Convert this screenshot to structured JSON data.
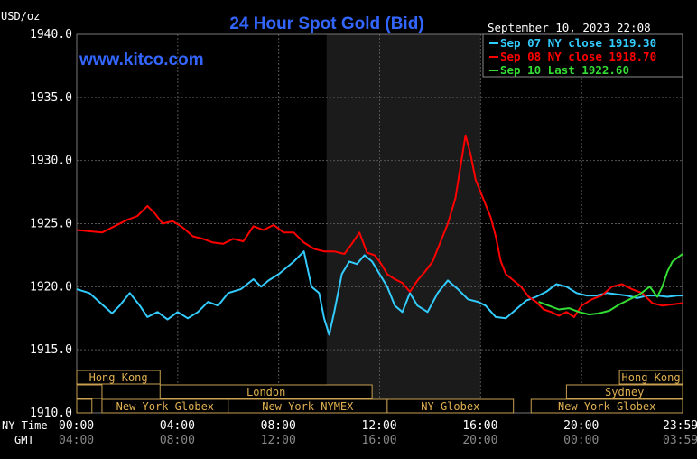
{
  "chart_data": {
    "type": "line",
    "title": "24 Hour Spot Gold (Bid)",
    "watermark": "www.kitco.com",
    "timestamp": "September 10, 2023 22:08",
    "ylabel": "USD/oz",
    "ylim": [
      1910,
      1940
    ],
    "yticks": [
      "1940.0",
      "1935.0",
      "1930.0",
      "1925.0",
      "1920.0",
      "1915.0",
      "1910.0"
    ],
    "yvalues": [
      1940,
      1935,
      1930,
      1925,
      1920,
      1915,
      1910
    ],
    "xlim": [
      0,
      24
    ],
    "x_axis_ny_label": "NY Time",
    "x_axis_gmt_label": "GMT",
    "xticks_ny": [
      "00:00",
      "04:00",
      "08:00",
      "12:00",
      "16:00",
      "20:00",
      "23:59"
    ],
    "xticks_gmt": [
      "04:00",
      "08:00",
      "12:00",
      "16:00",
      "20:00",
      "00:00",
      "03:59"
    ],
    "xtick_hours": [
      0,
      4,
      8,
      12,
      16,
      20,
      24
    ],
    "shaded_region": [
      9.9,
      16.0
    ],
    "grid": true,
    "legend_position": "top-right",
    "series": [
      {
        "name": "Sep 07 NY close 1919.30",
        "color": "#33ccff",
        "points": [
          [
            0,
            1919.8
          ],
          [
            0.5,
            1919.5
          ],
          [
            1,
            1918.6
          ],
          [
            1.4,
            1917.9
          ],
          [
            1.7,
            1918.5
          ],
          [
            2.1,
            1919.5
          ],
          [
            2.5,
            1918.5
          ],
          [
            2.8,
            1917.6
          ],
          [
            3.2,
            1918.0
          ],
          [
            3.6,
            1917.4
          ],
          [
            4.0,
            1918.0
          ],
          [
            4.4,
            1917.5
          ],
          [
            4.8,
            1918.0
          ],
          [
            5.2,
            1918.8
          ],
          [
            5.6,
            1918.5
          ],
          [
            6.0,
            1919.5
          ],
          [
            6.5,
            1919.8
          ],
          [
            7.0,
            1920.6
          ],
          [
            7.3,
            1920.0
          ],
          [
            7.6,
            1920.5
          ],
          [
            8.0,
            1921.0
          ],
          [
            8.3,
            1921.5
          ],
          [
            8.6,
            1922.0
          ],
          [
            9.0,
            1922.8
          ],
          [
            9.3,
            1920.0
          ],
          [
            9.6,
            1919.5
          ],
          [
            9.8,
            1917.5
          ],
          [
            10.0,
            1916.2
          ],
          [
            10.2,
            1918.0
          ],
          [
            10.5,
            1921.0
          ],
          [
            10.8,
            1922.0
          ],
          [
            11.1,
            1921.8
          ],
          [
            11.4,
            1922.5
          ],
          [
            11.7,
            1922.0
          ],
          [
            12.0,
            1921.0
          ],
          [
            12.3,
            1920.0
          ],
          [
            12.6,
            1918.5
          ],
          [
            12.9,
            1918.0
          ],
          [
            13.2,
            1919.5
          ],
          [
            13.5,
            1918.5
          ],
          [
            13.9,
            1918.0
          ],
          [
            14.3,
            1919.5
          ],
          [
            14.7,
            1920.5
          ],
          [
            15.1,
            1919.8
          ],
          [
            15.5,
            1919.0
          ],
          [
            15.9,
            1918.8
          ],
          [
            16.2,
            1918.5
          ],
          [
            16.6,
            1917.6
          ],
          [
            17.0,
            1917.5
          ],
          [
            17.4,
            1918.2
          ],
          [
            17.8,
            1918.9
          ],
          [
            18.2,
            1919.2
          ],
          [
            18.6,
            1919.6
          ],
          [
            19.0,
            1920.2
          ],
          [
            19.4,
            1920.0
          ],
          [
            19.8,
            1919.5
          ],
          [
            20.2,
            1919.3
          ],
          [
            20.6,
            1919.3
          ],
          [
            21.0,
            1919.5
          ],
          [
            21.4,
            1919.4
          ],
          [
            21.8,
            1919.3
          ],
          [
            22.2,
            1919.1
          ],
          [
            22.6,
            1919.3
          ],
          [
            23.0,
            1919.3
          ],
          [
            23.4,
            1919.2
          ],
          [
            23.8,
            1919.3
          ],
          [
            24.0,
            1919.3
          ]
        ]
      },
      {
        "name": "Sep 08 NY close 1918.70",
        "color": "#ff0000",
        "points": [
          [
            0,
            1924.5
          ],
          [
            0.5,
            1924.4
          ],
          [
            1.0,
            1924.3
          ],
          [
            1.5,
            1924.8
          ],
          [
            2.0,
            1925.3
          ],
          [
            2.4,
            1925.6
          ],
          [
            2.8,
            1926.4
          ],
          [
            3.1,
            1925.8
          ],
          [
            3.4,
            1925.0
          ],
          [
            3.8,
            1925.2
          ],
          [
            4.2,
            1924.7
          ],
          [
            4.6,
            1924.0
          ],
          [
            5.0,
            1923.8
          ],
          [
            5.4,
            1923.5
          ],
          [
            5.8,
            1923.4
          ],
          [
            6.2,
            1923.8
          ],
          [
            6.6,
            1923.6
          ],
          [
            7.0,
            1924.8
          ],
          [
            7.4,
            1924.5
          ],
          [
            7.8,
            1924.9
          ],
          [
            8.2,
            1924.3
          ],
          [
            8.6,
            1924.3
          ],
          [
            9.0,
            1923.5
          ],
          [
            9.4,
            1923.0
          ],
          [
            9.8,
            1922.8
          ],
          [
            10.2,
            1922.8
          ],
          [
            10.6,
            1922.6
          ],
          [
            10.9,
            1923.4
          ],
          [
            11.2,
            1924.3
          ],
          [
            11.5,
            1922.7
          ],
          [
            11.8,
            1922.5
          ],
          [
            12.0,
            1922.0
          ],
          [
            12.3,
            1921.0
          ],
          [
            12.6,
            1920.6
          ],
          [
            12.9,
            1920.3
          ],
          [
            13.2,
            1919.6
          ],
          [
            13.5,
            1920.5
          ],
          [
            13.8,
            1921.2
          ],
          [
            14.1,
            1922.0
          ],
          [
            14.4,
            1923.5
          ],
          [
            14.7,
            1925.0
          ],
          [
            15.0,
            1927.0
          ],
          [
            15.2,
            1929.5
          ],
          [
            15.4,
            1932.0
          ],
          [
            15.6,
            1930.5
          ],
          [
            15.8,
            1928.5
          ],
          [
            16.0,
            1927.5
          ],
          [
            16.2,
            1926.5
          ],
          [
            16.4,
            1925.5
          ],
          [
            16.6,
            1924.0
          ],
          [
            16.8,
            1922.0
          ],
          [
            17.0,
            1921.0
          ],
          [
            17.3,
            1920.5
          ],
          [
            17.6,
            1920.0
          ],
          [
            17.9,
            1919.2
          ],
          [
            18.2,
            1918.8
          ],
          [
            18.5,
            1918.2
          ],
          [
            18.8,
            1918.0
          ],
          [
            19.1,
            1917.7
          ],
          [
            19.4,
            1918.0
          ],
          [
            19.7,
            1917.6
          ],
          [
            20.0,
            1918.5
          ],
          [
            20.4,
            1919.0
          ],
          [
            20.8,
            1919.3
          ],
          [
            21.2,
            1920.0
          ],
          [
            21.6,
            1920.2
          ],
          [
            22.0,
            1919.8
          ],
          [
            22.4,
            1919.5
          ],
          [
            22.8,
            1918.7
          ],
          [
            23.2,
            1918.5
          ],
          [
            23.6,
            1918.6
          ],
          [
            24.0,
            1918.7
          ]
        ]
      },
      {
        "name": "Sep 10 Last 1922.60",
        "color": "#33dd33",
        "points": [
          [
            18.3,
            1918.8
          ],
          [
            18.7,
            1918.5
          ],
          [
            19.1,
            1918.2
          ],
          [
            19.5,
            1918.3
          ],
          [
            19.9,
            1918.0
          ],
          [
            20.3,
            1917.8
          ],
          [
            20.7,
            1917.9
          ],
          [
            21.1,
            1918.1
          ],
          [
            21.5,
            1918.6
          ],
          [
            21.9,
            1919.0
          ],
          [
            22.3,
            1919.4
          ],
          [
            22.7,
            1920.0
          ],
          [
            23.0,
            1919.2
          ],
          [
            23.2,
            1920.0
          ],
          [
            23.4,
            1921.2
          ],
          [
            23.6,
            1922.0
          ],
          [
            23.8,
            1922.3
          ],
          [
            24.0,
            1922.6
          ]
        ]
      }
    ],
    "market_bars": [
      {
        "label": "Hong Kong",
        "start": -1.2,
        "end": 3.3,
        "row": 0
      },
      {
        "label": "New York Globex",
        "start": -1.2,
        "end": 0.6,
        "row": 2,
        "hide_label": true
      },
      {
        "label": "",
        "start": -1.2,
        "end": 1.0,
        "row": 1
      },
      {
        "label": "New York Globex",
        "start": 1.0,
        "end": 6.0,
        "row": 2
      },
      {
        "label": "London",
        "start": 3.3,
        "end": 11.7,
        "row": 1
      },
      {
        "label": "New York NYMEX",
        "start": 6.0,
        "end": 12.3,
        "row": 2
      },
      {
        "label": "NY Globex",
        "start": 12.3,
        "end": 17.3,
        "row": 2
      },
      {
        "label": "Hong Kong",
        "start": 19.3,
        "end": 23.5,
        "row": 0
      },
      {
        "label": "Sydney",
        "start": 18.0,
        "end": 23.5,
        "row": 1
      },
      {
        "label": "New York Globex",
        "start": 17.3,
        "end": 23.5,
        "row": 2
      }
    ],
    "market_bars_right": [
      {
        "label": "Hong Kong",
        "start": 21.5,
        "end": 24.0,
        "row": 0
      },
      {
        "label": "Sydney",
        "start": 19.4,
        "end": 24.0,
        "row": 1
      },
      {
        "label": "New York Globex",
        "start": 18.0,
        "end": 24.0,
        "row": 2
      }
    ]
  }
}
